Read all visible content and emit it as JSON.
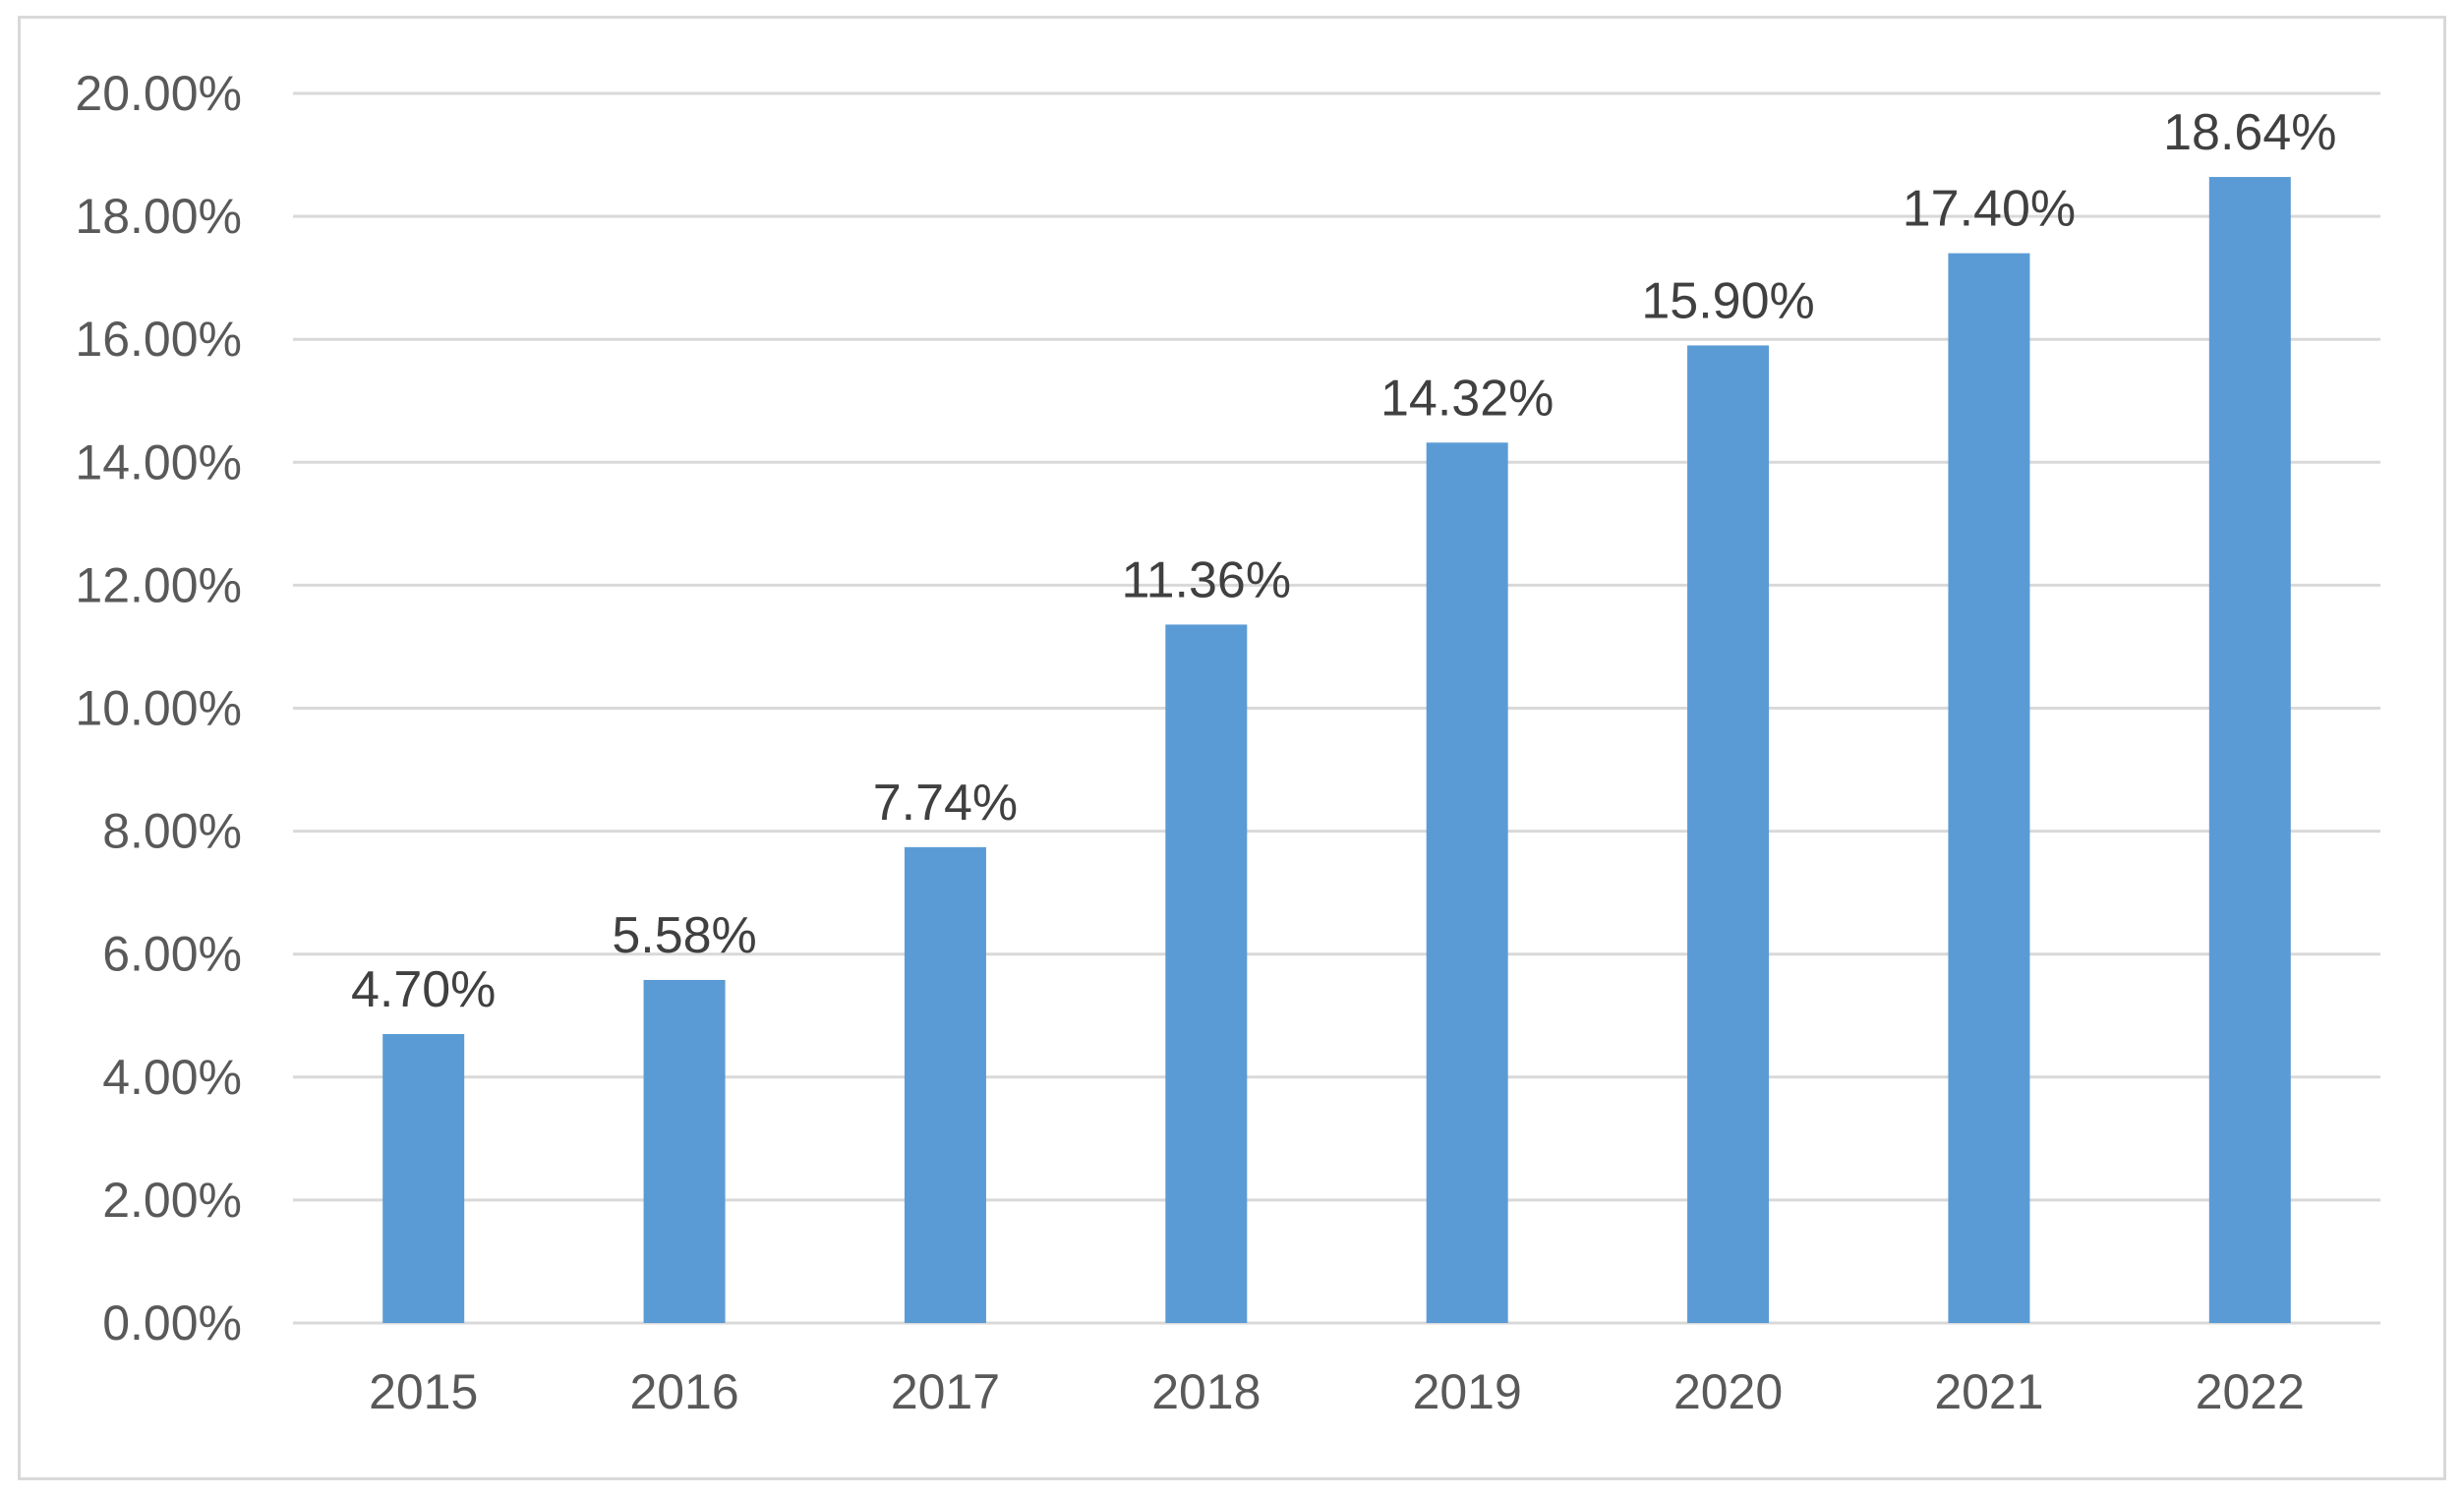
{
  "chart_data": {
    "type": "bar",
    "title": "",
    "xlabel": "",
    "ylabel": "",
    "categories": [
      "2015",
      "2016",
      "2017",
      "2018",
      "2019",
      "2020",
      "2021",
      "2022"
    ],
    "values": [
      4.7,
      5.58,
      7.74,
      11.36,
      14.32,
      15.9,
      17.4,
      18.64
    ],
    "data_labels": [
      "4.70%",
      "5.58%",
      "7.74%",
      "11.36%",
      "14.32%",
      "15.90%",
      "17.40%",
      "18.64%"
    ],
    "ylim": [
      0,
      20
    ],
    "yticks": [
      0,
      2,
      4,
      6,
      8,
      10,
      12,
      14,
      16,
      18,
      20
    ],
    "ytick_labels": [
      "0.00%",
      "2.00%",
      "4.00%",
      "6.00%",
      "8.00%",
      "10.00%",
      "12.00%",
      "14.00%",
      "16.00%",
      "18.00%",
      "20.00%"
    ],
    "grid": true,
    "legend": "none",
    "colors": {
      "bar": "#5b9bd5",
      "grid": "#d9d9d9",
      "tick_text": "#595959",
      "label_text": "#404040"
    }
  }
}
